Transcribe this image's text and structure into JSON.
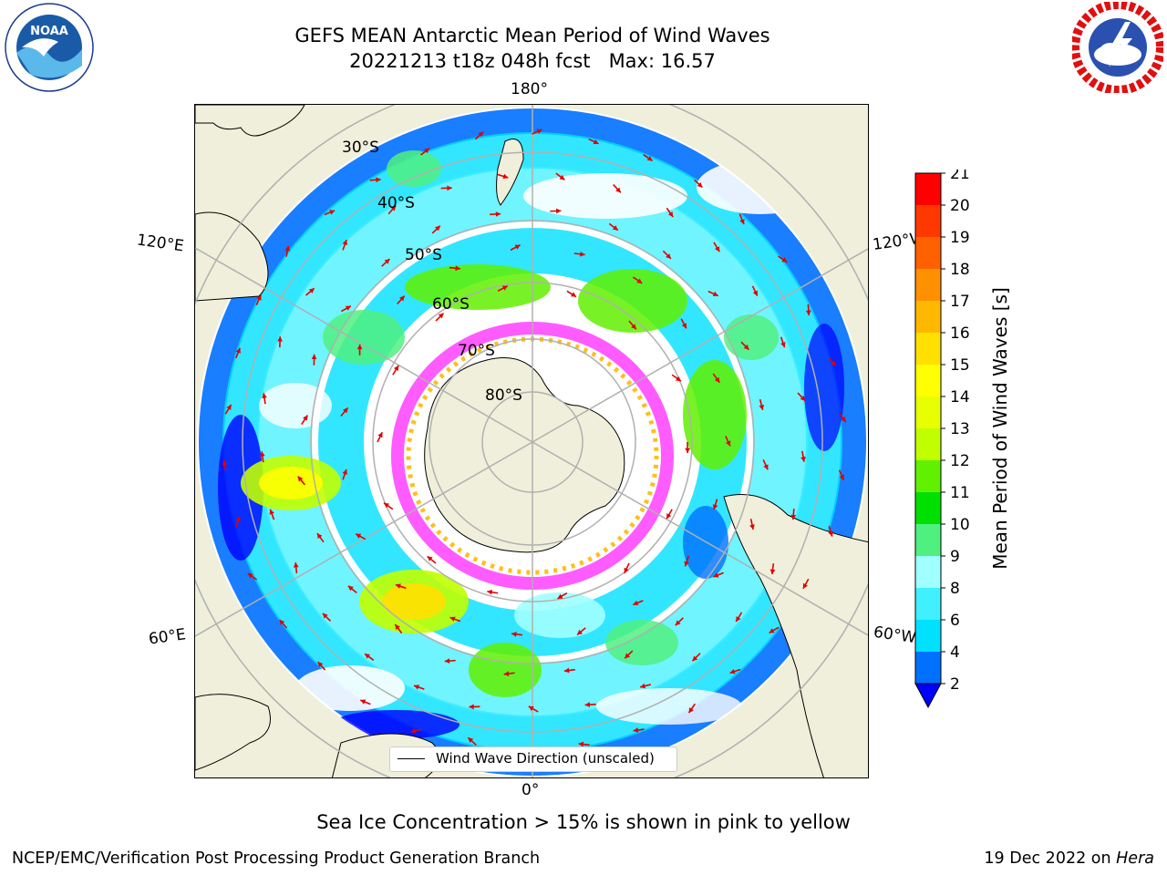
{
  "title": {
    "line1": "GEFS MEAN Antarctic Mean Period of Wind Waves",
    "line2": "20221213 t18z 048h fcst   Max: 16.57"
  },
  "logos": {
    "left": {
      "name": "NOAA",
      "ring_text": "NATIONAL OCEANIC AND ATMOSPHERIC ADMINISTRATION · U.S. DEPARTMENT OF COMMERCE"
    },
    "right": {
      "name": "NATIONAL WEATHER SERVICE"
    }
  },
  "map": {
    "projection": "south-polar-stereographic",
    "lon_labels": {
      "top": "180°",
      "bottom": "0°",
      "left_upper": "120°E",
      "right_upper": "120°W",
      "left_lower": "60°E",
      "right_lower": "60°W"
    },
    "lat_labels": [
      "30°S",
      "40°S",
      "50°S",
      "60°S",
      "70°S",
      "80°S"
    ],
    "legend": "Wind Wave Direction (unscaled)",
    "colors": {
      "land": "#efefdb",
      "coast": "#000000",
      "grid": "#b0b0b0",
      "arrow": "#e00000"
    }
  },
  "colorbar": {
    "title": "Mean Period of Wind Waves [s]",
    "ticks": [
      "2",
      "4",
      "6",
      "8",
      "9",
      "10",
      "11",
      "12",
      "13",
      "14",
      "15",
      "16",
      "17",
      "18",
      "19",
      "20",
      "21"
    ],
    "colors": [
      "#0070ff",
      "#00e0ff",
      "#40f0ff",
      "#a0ffff",
      "#50f080",
      "#00e000",
      "#60f000",
      "#c0ff00",
      "#e8ff00",
      "#ffff00",
      "#ffe000",
      "#ffb800",
      "#ff9000",
      "#ff6000",
      "#ff3800",
      "#ff0000"
    ],
    "extend_color": "#0000ff"
  },
  "footer": {
    "note": "Sea Ice Concentration > 15% is shown in pink to yellow",
    "left": "NCEP/EMC/Verification Post Processing Product Generation Branch",
    "right_text": "19 Dec 2022 on ",
    "right_host": "Hera"
  }
}
